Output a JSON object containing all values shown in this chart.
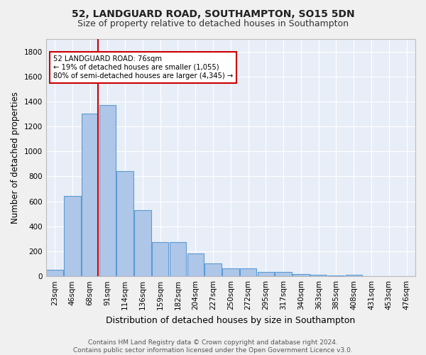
{
  "title": "52, LANDGUARD ROAD, SOUTHAMPTON, SO15 5DN",
  "subtitle": "Size of property relative to detached houses in Southampton",
  "xlabel": "Distribution of detached houses by size in Southampton",
  "ylabel": "Number of detached properties",
  "categories": [
    "23sqm",
    "46sqm",
    "68sqm",
    "91sqm",
    "114sqm",
    "136sqm",
    "159sqm",
    "182sqm",
    "204sqm",
    "227sqm",
    "250sqm",
    "272sqm",
    "295sqm",
    "317sqm",
    "340sqm",
    "363sqm",
    "385sqm",
    "408sqm",
    "431sqm",
    "453sqm",
    "476sqm"
  ],
  "values": [
    55,
    645,
    1305,
    1370,
    840,
    530,
    275,
    275,
    185,
    105,
    65,
    65,
    35,
    35,
    20,
    12,
    8,
    15,
    0,
    0,
    0
  ],
  "bar_color": "#aec6e8",
  "bar_edge_color": "#5b9bd5",
  "vline_color": "#cc0000",
  "vline_x_pos": 2.45,
  "annotation_text": "52 LANDGUARD ROAD: 76sqm\n← 19% of detached houses are smaller (1,055)\n80% of semi-detached houses are larger (4,345) →",
  "annotation_box_color": "#ffffff",
  "annotation_box_edge": "#cc0000",
  "ylim": [
    0,
    1900
  ],
  "yticks": [
    0,
    200,
    400,
    600,
    800,
    1000,
    1200,
    1400,
    1600,
    1800
  ],
  "bg_color": "#e8eef8",
  "grid_color": "#ffffff",
  "footer": "Contains HM Land Registry data © Crown copyright and database right 2024.\nContains public sector information licensed under the Open Government Licence v3.0.",
  "title_fontsize": 10,
  "subtitle_fontsize": 9,
  "xlabel_fontsize": 9,
  "ylabel_fontsize": 8.5,
  "tick_fontsize": 7.5,
  "footer_fontsize": 6.5
}
